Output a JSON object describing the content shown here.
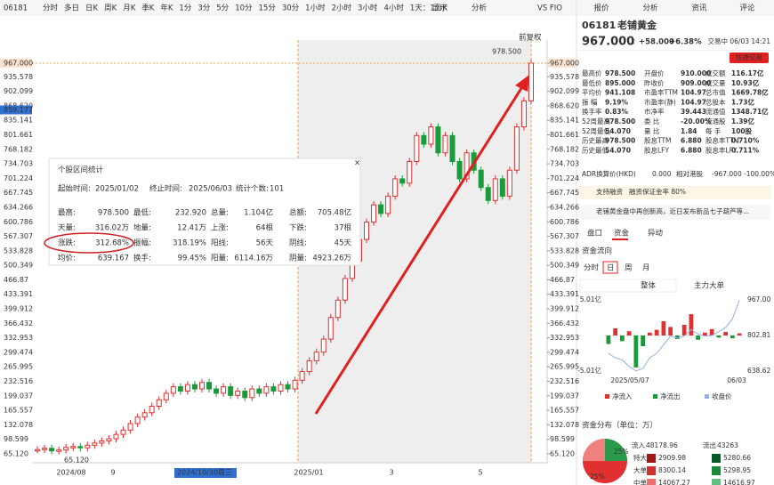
{
  "toolbar": {
    "code": "06181",
    "periods": [
      "分时",
      "多日",
      "日K",
      "周K",
      "月K",
      "季K",
      "年K",
      "1分",
      "3分",
      "5分",
      "10分",
      "15分",
      "30分",
      "1小时",
      "2小时",
      "3小时",
      "4小时",
      "1天：1分K"
    ],
    "active_period": 2,
    "display": "显示",
    "analysis": "分析",
    "vs": "VS FIO",
    "adjust": "前复权"
  },
  "right_tabs": [
    "报价",
    "分析",
    "资讯",
    "评论"
  ],
  "chart_data": {
    "type": "candlestick",
    "closes": [
      75,
      78,
      72,
      74,
      80,
      82,
      79,
      85,
      90,
      95,
      100,
      110,
      120,
      135,
      150,
      160,
      175,
      190,
      205,
      220,
      210,
      225,
      215,
      230,
      215,
      205,
      220,
      200,
      210,
      195,
      215,
      205,
      220,
      210,
      225,
      215,
      235,
      255,
      280,
      300,
      330,
      380,
      420,
      470,
      510,
      560,
      600,
      640,
      620,
      660,
      700,
      690,
      740,
      800,
      780,
      820,
      760,
      800,
      740,
      700,
      760,
      720,
      680,
      650,
      700,
      660,
      720,
      820,
      880,
      967
    ],
    "ylim": [
      65.12,
      967.0
    ],
    "yticks": [
      {
        "value": 967.0,
        "label": "967.000"
      },
      935.578,
      902.099,
      {
        "value": 868.62,
        "label": "868.620"
      },
      835.141,
      801.661,
      768.182,
      734.703,
      701.224,
      667.745,
      634.266,
      600.786,
      567.307,
      533.828,
      500.349,
      466.87,
      433.391,
      399.912,
      366.432,
      332.953,
      299.474,
      265.995,
      232.516,
      199.037,
      165.557,
      132.078,
      98.599,
      {
        "value": 65.12,
        "label": "65.120"
      }
    ],
    "crosshair": {
      "value": 859.177,
      "label": "859.177"
    },
    "high_label": "978.500",
    "low_label": "65.120",
    "xlabels": [
      "2024/08",
      "9",
      "2024/10/30周三",
      "2025/01",
      "3",
      "5"
    ]
  },
  "stats": {
    "title": "个股区间统计",
    "range": [
      [
        "起始时间:",
        "2025/01/02"
      ],
      [
        "终止时间:",
        "2025/06/03"
      ],
      [
        "统计个数:",
        "101"
      ]
    ],
    "rows": [
      [
        [
          "最高:",
          "978.500",
          "#e02020"
        ],
        [
          "最低:",
          "232.920",
          "#e02020"
        ],
        [
          "总量:",
          "1.104亿",
          "#333"
        ],
        [
          "总额:",
          "705.48亿",
          "#333"
        ]
      ],
      [
        [
          "天量:",
          "316.02万",
          "#333"
        ],
        [
          "地量:",
          "12.41万",
          "#333"
        ],
        [
          "上涨:",
          "64根",
          "#e02020"
        ],
        [
          "下跌:",
          "37根",
          "#1a9a3a"
        ]
      ],
      [
        [
          "涨跌:",
          "312.68%",
          "#e02020"
        ],
        [
          "振幅:",
          "318.19%",
          "#333"
        ],
        [
          "阳线:",
          "56天",
          "#e02020"
        ],
        [
          "阴线:",
          "45天",
          "#1a9a3a"
        ]
      ],
      [
        [
          "均价:",
          "639.167",
          "#e02020"
        ],
        [
          "换手:",
          "99.45%",
          "#333"
        ],
        [
          "阳量:",
          "6114.16万",
          "#e02020"
        ],
        [
          "阴量:",
          "4923.26万",
          "#1a9a3a"
        ]
      ]
    ]
  },
  "stock": {
    "code": "06181",
    "name": "老铺黄金",
    "price": "967.000",
    "change": "+58.000",
    "pct": "+6.38%",
    "status": "交易中 06/03 14:21",
    "quick": "快捷交易"
  },
  "quote": [
    [
      [
        "最高价",
        "978.500",
        "#e02020"
      ],
      [
        "开盘价",
        "910.000",
        "#e02020"
      ],
      [
        "成交额",
        "116.17亿",
        "#333"
      ]
    ],
    [
      [
        "最低价",
        "895.000",
        "#e02020"
      ],
      [
        "昨收价",
        "909.000",
        "#333"
      ],
      [
        "成交量",
        "10.93亿",
        "#333"
      ]
    ],
    [
      [
        "平均价",
        "941.108",
        "#e02020"
      ],
      [
        "市盈率TTM",
        "104.97",
        "#333"
      ],
      [
        "总市值",
        "1669.78亿",
        "#333"
      ]
    ],
    [
      [
        "振 幅",
        "9.19%",
        "#333"
      ],
      [
        "市盈率(静)",
        "104.97",
        "#333"
      ],
      [
        "总股本",
        "1.73亿",
        "#333"
      ]
    ],
    [
      [
        "换手率",
        "0.83%",
        "#333"
      ],
      [
        "市净率",
        "39.443",
        "#333"
      ],
      [
        "流通值",
        "1348.71亿",
        "#333"
      ]
    ],
    [
      [
        "52周最高",
        "978.500",
        "#e02020"
      ],
      [
        "委 比",
        "-20.00%",
        "#1a9a3a"
      ],
      [
        "流通股",
        "1.39亿",
        "#333"
      ]
    ],
    [
      [
        "52周最低",
        "54.070",
        "#1a9a3a"
      ],
      [
        "量 比",
        "1.84",
        "#333"
      ],
      [
        "每 手",
        "100股",
        "#333"
      ]
    ],
    [
      [
        "历史最高",
        "978.500",
        "#e02020"
      ],
      [
        "股息TTM",
        "6.880",
        "#333"
      ],
      [
        "股息率TTM",
        "0.710%",
        "#333"
      ]
    ],
    [
      [
        "历史最低",
        "54.070",
        "#1a9a3a"
      ],
      [
        "股息LFY",
        "6.880",
        "#333"
      ],
      [
        "股息率LFY",
        "0.711%",
        "#333"
      ]
    ]
  ],
  "adr": [
    "ADR换算价(HKD)",
    "0.000",
    "相对港股",
    "-967.000",
    "-100.00%"
  ],
  "margin": [
    "支持融资",
    "融资保证金率 80%"
  ],
  "news": "老铺黄金盘中再创新高，近日发布新品七子葫芦等...",
  "tabs": [
    "盘口",
    "资金",
    "异动"
  ],
  "flow": {
    "title": "资金流向",
    "periods": [
      "分时",
      "日",
      "周",
      "月"
    ],
    "views": [
      "整体",
      "主力大单"
    ],
    "bars": [
      -1.2,
      1.0,
      -0.8,
      0.6,
      -4.5,
      -1.5,
      0.4,
      0.8,
      2.0,
      1.2,
      -0.5,
      1.5,
      3.0,
      -0.6,
      0.4,
      0.9,
      -0.3,
      0.5,
      -0.4,
      0.3
    ],
    "close": [
      720,
      700,
      690,
      660,
      640,
      650,
      700,
      720,
      760,
      800,
      790,
      800,
      830,
      810,
      800,
      802.81,
      820,
      840,
      880,
      967
    ],
    "ylim": [
      -5.01,
      5.01
    ],
    "y2lim": [
      638.62,
      967.0
    ],
    "labels": [
      "5.01亿",
      "-5.01亿",
      "967.00",
      "802.81",
      "638.62"
    ],
    "dates": [
      "2025/05/07",
      "06/03"
    ],
    "legend": [
      "净流入",
      "净流出",
      "收盘价"
    ]
  },
  "dist": {
    "title": "资金分布（单位：万）",
    "in_label": "流入",
    "in": "48178.96",
    "out_label": "流出",
    "out": "43263",
    "rows": [
      [
        "特大",
        "2909.98",
        "5280.66"
      ],
      [
        "大单",
        "8300.14",
        "5298.95"
      ],
      [
        "中单",
        "14067.27",
        "14616.97"
      ]
    ],
    "pie": [
      "25%",
      "25%"
    ]
  }
}
